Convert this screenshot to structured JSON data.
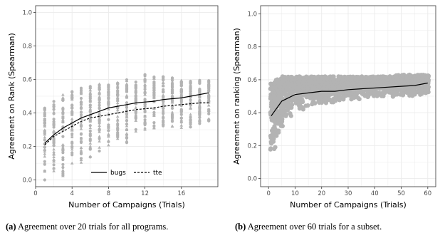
{
  "captions": [
    {
      "label": "(a)",
      "text": "Agreement over 20 trials for all programs."
    },
    {
      "label": "(b)",
      "text": "Agreement over 60 trials for a subset."
    }
  ],
  "colors": {
    "points": "#b3b3b3",
    "grid": "#ebebeb",
    "line": "#000000"
  },
  "chart_data": [
    {
      "type": "scatter",
      "xlabel": "Number of Campaigns (Trials)",
      "ylabel": "Agreement on Rank (Spearman)",
      "xlim": [
        0,
        20
      ],
      "ylim": [
        -0.04,
        1.04
      ],
      "xticks": [
        0,
        4,
        8,
        12,
        16
      ],
      "yticks": [
        0.0,
        0.2,
        0.4,
        0.6,
        0.8,
        1.0
      ],
      "grid": true,
      "legend": {
        "placement": "bottom-center",
        "entries": [
          "bugs",
          "tte"
        ]
      },
      "series": [
        {
          "name": "bugs",
          "style": "solid",
          "x": [
            1,
            2,
            3,
            4,
            5,
            6,
            7,
            8,
            9,
            10,
            11,
            12,
            13,
            14,
            15,
            16,
            17,
            18,
            19
          ],
          "y": [
            0.22,
            0.27,
            0.31,
            0.34,
            0.37,
            0.39,
            0.41,
            0.43,
            0.44,
            0.45,
            0.46,
            0.465,
            0.47,
            0.48,
            0.485,
            0.49,
            0.5,
            0.51,
            0.52
          ]
        },
        {
          "name": "tte",
          "style": "dashed",
          "x": [
            1,
            2,
            3,
            4,
            5,
            6,
            7,
            8,
            9,
            10,
            11,
            12,
            13,
            14,
            15,
            16,
            17,
            18,
            19
          ],
          "y": [
            0.21,
            0.26,
            0.29,
            0.32,
            0.35,
            0.37,
            0.38,
            0.39,
            0.4,
            0.41,
            0.42,
            0.425,
            0.43,
            0.44,
            0.445,
            0.45,
            0.455,
            0.46,
            0.46
          ]
        }
      ],
      "scatter": {
        "x": [
          1,
          2,
          3,
          4,
          5,
          6,
          7,
          8,
          9,
          10,
          11,
          12,
          13,
          14,
          15,
          16,
          17,
          18,
          19
        ],
        "y_min": [
          0.0,
          0.0,
          0.02,
          0.06,
          0.09,
          0.13,
          0.17,
          0.19,
          0.22,
          0.22,
          0.27,
          0.27,
          0.29,
          0.31,
          0.31,
          0.31,
          0.31,
          0.33,
          0.35
        ],
        "y_max": [
          0.45,
          0.47,
          0.52,
          0.53,
          0.55,
          0.56,
          0.58,
          0.58,
          0.59,
          0.6,
          0.6,
          0.63,
          0.62,
          0.62,
          0.61,
          0.6,
          0.6,
          0.6,
          0.6
        ]
      }
    },
    {
      "type": "scatter",
      "xlabel": "Number of Campaigns (Trials)",
      "ylabel": "Agreement on ranking (Spearman)",
      "xlim": [
        -3,
        63
      ],
      "ylim": [
        -0.05,
        1.05
      ],
      "xticks": [
        0,
        10,
        20,
        30,
        40,
        50,
        60
      ],
      "yticks": [
        0.0,
        0.2,
        0.4,
        0.6,
        0.8,
        1.0
      ],
      "grid": true,
      "series": [
        {
          "name": "",
          "style": "solid",
          "x": [
            1,
            5,
            10,
            15,
            20,
            25,
            30,
            35,
            40,
            45,
            50,
            55,
            60
          ],
          "y": [
            0.38,
            0.47,
            0.51,
            0.52,
            0.53,
            0.53,
            0.54,
            0.545,
            0.55,
            0.555,
            0.56,
            0.565,
            0.58
          ]
        }
      ],
      "scatter": {
        "x": [
          1,
          3,
          5,
          8,
          10,
          15,
          20,
          25,
          30,
          35,
          40,
          45,
          50,
          55,
          60
        ],
        "y_min": [
          0.15,
          0.2,
          0.3,
          0.37,
          0.4,
          0.43,
          0.44,
          0.46,
          0.46,
          0.48,
          0.49,
          0.49,
          0.5,
          0.5,
          0.5
        ],
        "y_max": [
          0.58,
          0.6,
          0.62,
          0.62,
          0.62,
          0.62,
          0.62,
          0.62,
          0.62,
          0.62,
          0.62,
          0.62,
          0.63,
          0.63,
          0.63
        ]
      }
    }
  ]
}
